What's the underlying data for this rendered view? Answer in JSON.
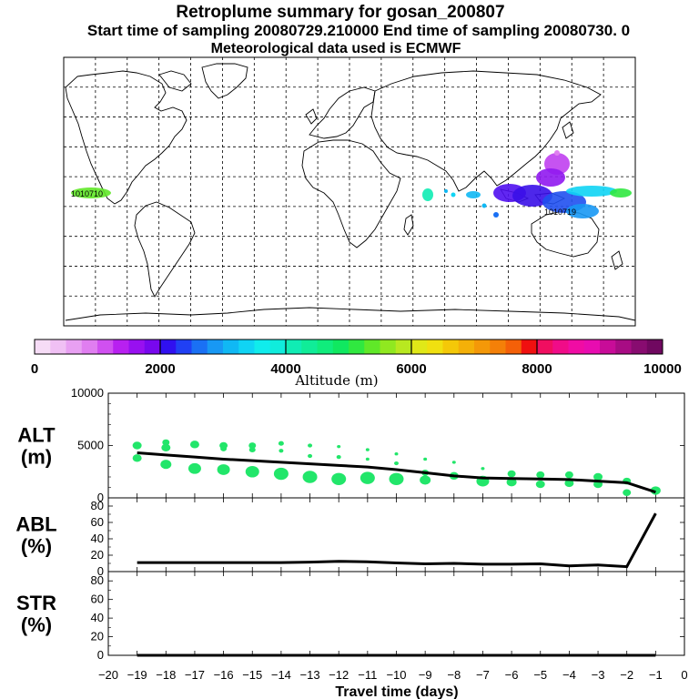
{
  "header": {
    "title": "Retroplume summary for gosan_200807",
    "subtitle": "Start time of sampling 20080729.210000     End time of sampling 20080730.     0",
    "met_line": "Meteorological data used is ECMWF"
  },
  "colors": {
    "plume_green": "#22e66a",
    "line": "#000000",
    "grid": "#000000"
  },
  "colorbar": {
    "label": "Altitude  (m)",
    "ticks": [
      "0",
      "2000",
      "4000",
      "6000",
      "8000",
      "10000"
    ],
    "colors": [
      "#f6dcf6",
      "#f0c0f4",
      "#e8a0f2",
      "#e07ef0",
      "#d050f0",
      "#b820f0",
      "#9810f0",
      "#7808ee",
      "#3010f0",
      "#2040f4",
      "#1a70f4",
      "#1898f4",
      "#10b8f4",
      "#10d4f4",
      "#10ecec",
      "#10ecdc",
      "#10ecb4",
      "#10ec98",
      "#10ec7c",
      "#10e860",
      "#30e840",
      "#60e828",
      "#90e820",
      "#b8e820",
      "#e0e818",
      "#f0e010",
      "#f4c808",
      "#f4b008",
      "#f49808",
      "#f48008",
      "#f46008",
      "#f01010",
      "#f00e60",
      "#f00c88",
      "#f00ca4",
      "#e80cb0",
      "#c80c98",
      "#a80c84",
      "#880c70",
      "#700860"
    ]
  },
  "map": {
    "labels": [
      "1010710",
      "1010719"
    ],
    "plume_text": "1010710 1010719"
  },
  "chart_data": [
    {
      "type": "scatter",
      "panel": "ALT",
      "ylabel": [
        "ALT",
        "(m)"
      ],
      "ylim": [
        0,
        10000
      ],
      "yticks": [
        "10000",
        "5000",
        "0"
      ],
      "x": [
        -19,
        -18,
        -17,
        -16,
        -15,
        -14,
        -13,
        -12,
        -11,
        -10,
        -9,
        -8,
        -7,
        -6,
        -5,
        -4,
        -3,
        -2,
        -1
      ],
      "line": [
        4300,
        4100,
        3900,
        3700,
        3550,
        3400,
        3250,
        3100,
        2950,
        2700,
        2400,
        2100,
        1900,
        1850,
        1800,
        1750,
        1600,
        1450,
        550
      ],
      "points": [
        {
          "x": -19,
          "y": 5000,
          "s": 10
        },
        {
          "x": -19,
          "y": 3800,
          "s": 10
        },
        {
          "x": -18,
          "y": 5300,
          "s": 8
        },
        {
          "x": -18,
          "y": 4800,
          "s": 10
        },
        {
          "x": -18,
          "y": 3200,
          "s": 12
        },
        {
          "x": -17,
          "y": 5100,
          "s": 10
        },
        {
          "x": -17,
          "y": 2800,
          "s": 14
        },
        {
          "x": -16,
          "y": 5000,
          "s": 9
        },
        {
          "x": -16,
          "y": 4700,
          "s": 7
        },
        {
          "x": -16,
          "y": 2700,
          "s": 14
        },
        {
          "x": -15,
          "y": 5000,
          "s": 8
        },
        {
          "x": -15,
          "y": 4600,
          "s": 7
        },
        {
          "x": -15,
          "y": 2500,
          "s": 15
        },
        {
          "x": -14,
          "y": 5200,
          "s": 6
        },
        {
          "x": -14,
          "y": 4500,
          "s": 5
        },
        {
          "x": -14,
          "y": 2300,
          "s": 16
        },
        {
          "x": -13,
          "y": 5000,
          "s": 5
        },
        {
          "x": -13,
          "y": 4000,
          "s": 5
        },
        {
          "x": -13,
          "y": 2000,
          "s": 16
        },
        {
          "x": -12,
          "y": 4900,
          "s": 4
        },
        {
          "x": -12,
          "y": 3900,
          "s": 5
        },
        {
          "x": -12,
          "y": 1800,
          "s": 16
        },
        {
          "x": -11,
          "y": 4600,
          "s": 4
        },
        {
          "x": -11,
          "y": 3700,
          "s": 4
        },
        {
          "x": -11,
          "y": 1900,
          "s": 16
        },
        {
          "x": -10,
          "y": 4200,
          "s": 4
        },
        {
          "x": -10,
          "y": 3300,
          "s": 5
        },
        {
          "x": -10,
          "y": 1800,
          "s": 16
        },
        {
          "x": -9,
          "y": 3700,
          "s": 4
        },
        {
          "x": -9,
          "y": 2400,
          "s": 8
        },
        {
          "x": -9,
          "y": 1700,
          "s": 12
        },
        {
          "x": -8,
          "y": 3400,
          "s": 4
        },
        {
          "x": -8,
          "y": 2100,
          "s": 10
        },
        {
          "x": -7,
          "y": 2800,
          "s": 4
        },
        {
          "x": -7,
          "y": 1600,
          "s": 14
        },
        {
          "x": -6,
          "y": 2300,
          "s": 9
        },
        {
          "x": -6,
          "y": 1500,
          "s": 11
        },
        {
          "x": -5,
          "y": 2200,
          "s": 9
        },
        {
          "x": -5,
          "y": 1300,
          "s": 10
        },
        {
          "x": -4,
          "y": 2200,
          "s": 9
        },
        {
          "x": -4,
          "y": 1400,
          "s": 10
        },
        {
          "x": -3,
          "y": 2000,
          "s": 10
        },
        {
          "x": -3,
          "y": 1300,
          "s": 10
        },
        {
          "x": -2,
          "y": 1600,
          "s": 9
        },
        {
          "x": -2,
          "y": 500,
          "s": 9
        },
        {
          "x": -1,
          "y": 700,
          "s": 11
        }
      ]
    },
    {
      "type": "line",
      "panel": "ABL",
      "ylabel": [
        "ABL",
        "(%)"
      ],
      "ylim": [
        0,
        90
      ],
      "yticks": [
        "80",
        "60",
        "40",
        "20",
        "0"
      ],
      "x": [
        -19,
        -18,
        -17,
        -16,
        -15,
        -14,
        -13,
        -12,
        -11,
        -10,
        -9,
        -8,
        -7,
        -6,
        -5,
        -4,
        -3,
        -2,
        -1
      ],
      "values": [
        11,
        11,
        11,
        11,
        11,
        11,
        11.5,
        12.5,
        12,
        10.5,
        9.5,
        10,
        9,
        9,
        9.5,
        7,
        8,
        6,
        71
      ]
    },
    {
      "type": "line",
      "panel": "STR",
      "ylabel": [
        "STR",
        "(%)"
      ],
      "ylim": [
        0,
        90
      ],
      "yticks": [
        "80",
        "60",
        "40",
        "20",
        "0"
      ],
      "x": [
        -19,
        -18,
        -17,
        -16,
        -15,
        -14,
        -13,
        -12,
        -11,
        -10,
        -9,
        -8,
        -7,
        -6,
        -5,
        -4,
        -3,
        -2,
        -1
      ],
      "values": [
        0,
        0,
        0,
        0,
        0,
        0,
        0,
        0,
        0,
        0,
        0,
        0,
        0,
        0,
        0,
        0,
        0,
        0,
        0
      ]
    }
  ],
  "xaxis": {
    "label": "Travel time (days)",
    "ticks": [
      "−20",
      "−19",
      "−18",
      "−17",
      "−16",
      "−15",
      "−14",
      "−13",
      "−12",
      "−11",
      "−10",
      "−9",
      "−8",
      "−7",
      "−6",
      "−5",
      "−4",
      "−3",
      "−2",
      "−1",
      "0"
    ]
  }
}
